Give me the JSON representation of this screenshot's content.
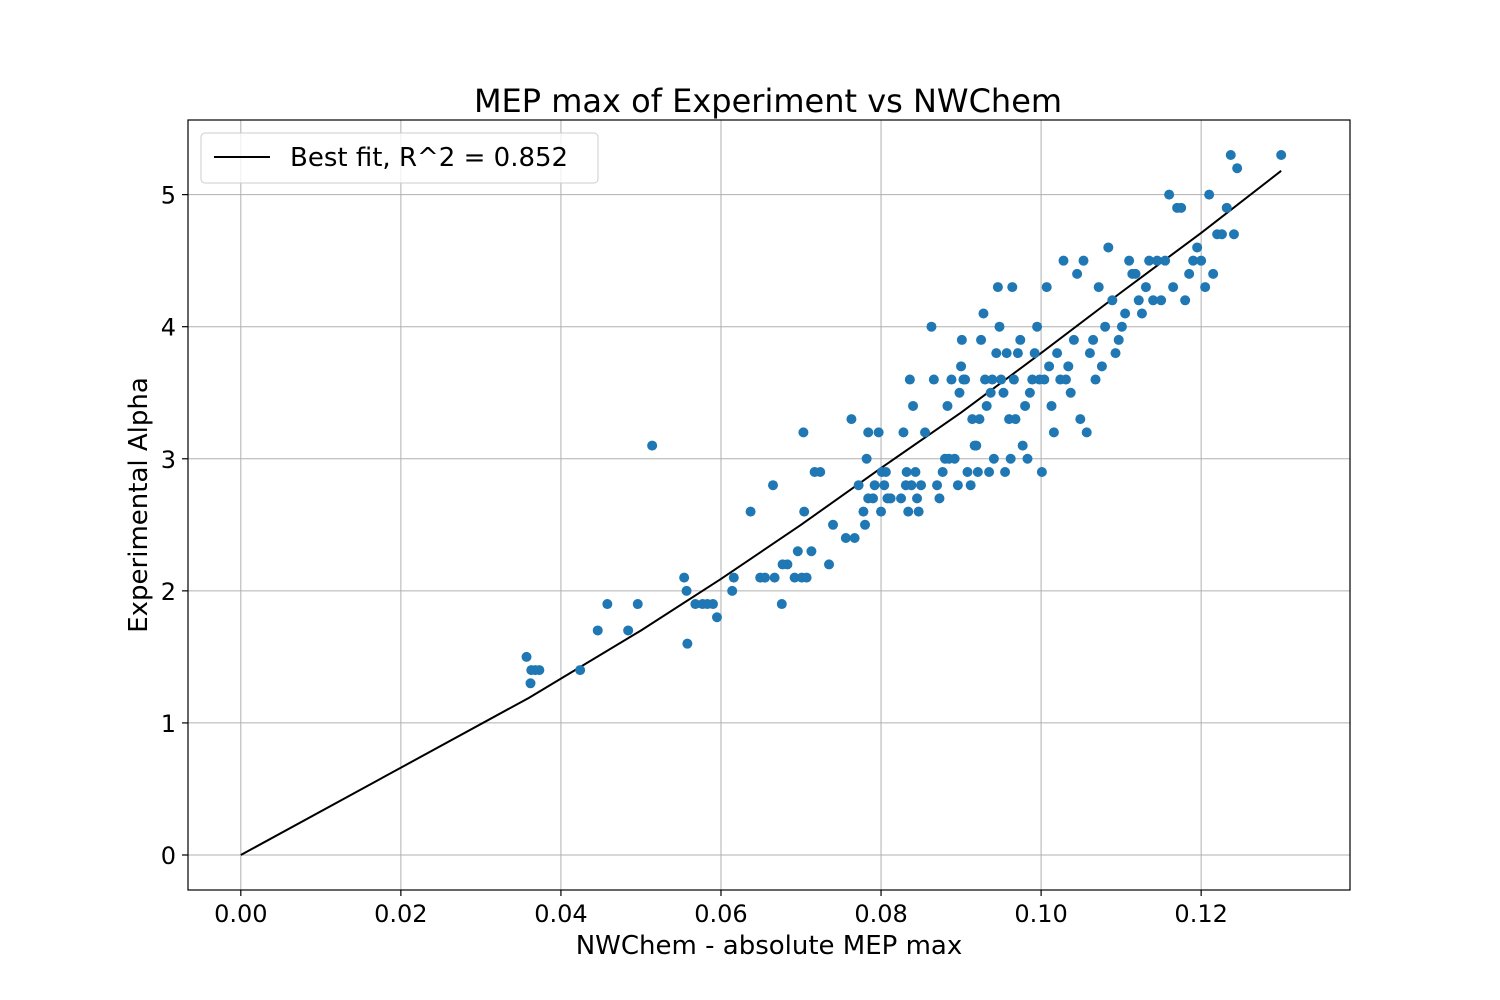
{
  "chart_data": {
    "type": "scatter",
    "title": "MEP max of Experiment vs NWChem",
    "xlabel": "NWChem - absolute MEP max",
    "ylabel": "Experimental Alpha",
    "xlim": [
      -0.0066,
      0.1386
    ],
    "ylim": [
      -0.265,
      5.565
    ],
    "x_ticks": [
      0.0,
      0.02,
      0.04,
      0.06,
      0.08,
      0.1,
      0.12
    ],
    "x_tick_labels": [
      "0.00",
      "0.02",
      "0.04",
      "0.06",
      "0.08",
      "0.10",
      "0.12"
    ],
    "y_ticks": [
      0,
      1,
      2,
      3,
      4,
      5
    ],
    "y_tick_labels": [
      "0",
      "1",
      "2",
      "3",
      "4",
      "5"
    ],
    "grid": true,
    "legend_position": "top-left",
    "colors": {
      "points": "#1f77b4",
      "fit_line": "#000000",
      "grid": "#b0b0b0"
    },
    "fit_line": {
      "name": "Best fit, R^2 = 0.852",
      "x": [
        0.0,
        0.036,
        0.05,
        0.06,
        0.07,
        0.08,
        0.09,
        0.1,
        0.11,
        0.12,
        0.13
      ],
      "y": [
        0.0,
        1.19,
        1.7,
        2.09,
        2.5,
        2.93,
        3.35,
        3.8,
        4.26,
        4.71,
        5.18
      ]
    },
    "points": {
      "x": [
        0.0357,
        0.0362,
        0.0368,
        0.0363,
        0.0373,
        0.0424,
        0.0446,
        0.0458,
        0.0484,
        0.0496,
        0.0514,
        0.0554,
        0.0557,
        0.0558,
        0.0568,
        0.0577,
        0.0583,
        0.059,
        0.0595,
        0.0614,
        0.0616,
        0.0637,
        0.0649,
        0.0655,
        0.0665,
        0.0667,
        0.0676,
        0.0677,
        0.0683,
        0.0692,
        0.0696,
        0.0701,
        0.0703,
        0.0704,
        0.0707,
        0.0713,
        0.0717,
        0.0724,
        0.0735,
        0.074,
        0.0756,
        0.0763,
        0.0767,
        0.0772,
        0.0778,
        0.078,
        0.0782,
        0.0784,
        0.0784,
        0.079,
        0.0792,
        0.0797,
        0.08,
        0.0801,
        0.0804,
        0.0806,
        0.0808,
        0.0812,
        0.0825,
        0.0828,
        0.0831,
        0.0832,
        0.0834,
        0.0836,
        0.0838,
        0.084,
        0.0843,
        0.0845,
        0.0847,
        0.085,
        0.0855,
        0.0863,
        0.0866,
        0.087,
        0.0873,
        0.0877,
        0.088,
        0.0883,
        0.0885,
        0.0888,
        0.0892,
        0.0896,
        0.0898,
        0.09,
        0.0901,
        0.0903,
        0.0905,
        0.0908,
        0.0912,
        0.0914,
        0.0917,
        0.0919,
        0.0921,
        0.0923,
        0.0925,
        0.0928,
        0.093,
        0.0932,
        0.0935,
        0.0937,
        0.0939,
        0.0941,
        0.0944,
        0.0946,
        0.0948,
        0.095,
        0.0953,
        0.0955,
        0.0957,
        0.096,
        0.0962,
        0.0964,
        0.0966,
        0.0968,
        0.0971,
        0.0974,
        0.0977,
        0.098,
        0.0983,
        0.0986,
        0.0989,
        0.0992,
        0.0995,
        0.0998,
        0.1001,
        0.1004,
        0.1007,
        0.101,
        0.1013,
        0.1016,
        0.102,
        0.1024,
        0.1028,
        0.1031,
        0.1034,
        0.1037,
        0.1041,
        0.1045,
        0.1049,
        0.1053,
        0.1057,
        0.1061,
        0.1065,
        0.1068,
        0.1072,
        0.1076,
        0.108,
        0.1084,
        0.1089,
        0.1093,
        0.1097,
        0.1101,
        0.1105,
        0.111,
        0.1114,
        0.1118,
        0.1122,
        0.1126,
        0.1131,
        0.1135,
        0.114,
        0.1145,
        0.115,
        0.1155,
        0.116,
        0.1165,
        0.117,
        0.1175,
        0.118,
        0.1185,
        0.119,
        0.1195,
        0.12,
        0.1205,
        0.121,
        0.1215,
        0.122,
        0.1226,
        0.1232,
        0.1237,
        0.1241,
        0.1245,
        0.13
      ],
      "y": [
        1.5,
        1.3,
        1.4,
        1.4,
        1.4,
        1.4,
        1.7,
        1.9,
        1.7,
        1.9,
        3.1,
        2.1,
        2.0,
        1.6,
        1.9,
        1.9,
        1.9,
        1.9,
        1.8,
        2.0,
        2.1,
        2.6,
        2.1,
        2.1,
        2.8,
        2.1,
        1.9,
        2.2,
        2.2,
        2.1,
        2.3,
        2.1,
        3.2,
        2.6,
        2.1,
        2.3,
        2.9,
        2.9,
        2.2,
        2.5,
        2.4,
        3.3,
        2.4,
        2.8,
        2.6,
        2.5,
        3.0,
        3.2,
        2.7,
        2.7,
        2.8,
        3.2,
        2.6,
        2.9,
        2.8,
        2.9,
        2.7,
        2.7,
        2.7,
        3.2,
        2.8,
        2.9,
        2.6,
        3.6,
        2.8,
        3.4,
        2.9,
        2.7,
        2.6,
        2.8,
        3.2,
        4.0,
        3.6,
        2.8,
        2.7,
        2.9,
        3.0,
        3.4,
        3.0,
        3.6,
        3.0,
        2.8,
        3.5,
        3.7,
        3.9,
        3.6,
        3.6,
        2.9,
        2.8,
        3.3,
        3.1,
        3.1,
        2.9,
        3.3,
        3.9,
        4.1,
        3.6,
        3.4,
        2.9,
        3.5,
        3.6,
        3.0,
        3.8,
        4.3,
        4.0,
        3.6,
        3.5,
        2.9,
        3.8,
        3.3,
        3.0,
        4.3,
        3.6,
        3.3,
        3.8,
        3.9,
        3.1,
        3.4,
        3.0,
        3.5,
        3.6,
        3.8,
        4.0,
        3.6,
        2.9,
        3.6,
        4.3,
        3.7,
        3.4,
        3.2,
        3.8,
        3.6,
        4.5,
        3.6,
        3.7,
        3.5,
        3.9,
        4.4,
        3.3,
        4.5,
        3.2,
        3.8,
        3.9,
        3.6,
        4.3,
        3.7,
        4.0,
        4.6,
        4.2,
        3.8,
        3.9,
        4.0,
        4.1,
        4.5,
        4.4,
        4.4,
        4.2,
        4.1,
        4.3,
        4.5,
        4.2,
        4.5,
        4.2,
        4.5,
        5.0,
        4.3,
        4.9,
        4.9,
        4.2,
        4.4,
        4.5,
        4.6,
        4.5,
        4.3,
        5.0,
        4.4,
        4.7,
        4.7,
        4.9,
        5.3,
        4.7,
        5.2,
        5.3
      ]
    }
  }
}
